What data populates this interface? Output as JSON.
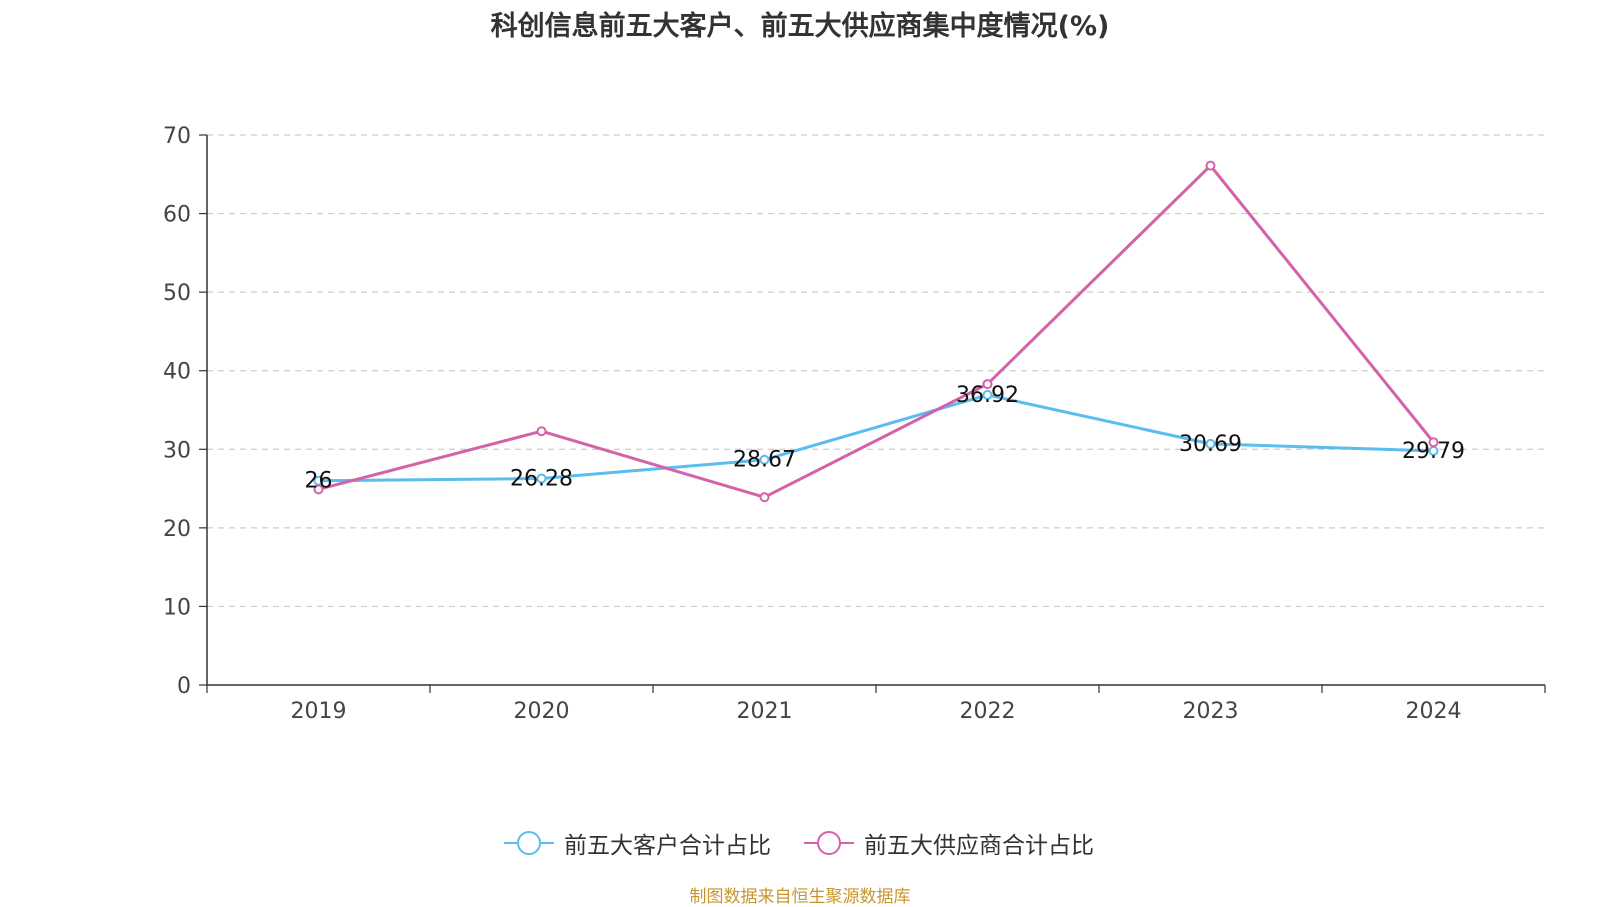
{
  "chart_data": {
    "type": "line",
    "title": "科创信息前五大客户、前五大供应商集中度情况(%)",
    "categories": [
      "2019",
      "2020",
      "2021",
      "2022",
      "2023",
      "2024"
    ],
    "ylim": [
      0,
      70
    ],
    "yticks": [
      0,
      10,
      20,
      30,
      40,
      50,
      60,
      70
    ],
    "grid": true,
    "legend_position": "bottom",
    "series": [
      {
        "name": "前五大客户合计占比",
        "color": "#5bbcf0",
        "values": [
          26,
          26.28,
          28.67,
          36.92,
          30.69,
          29.79
        ],
        "labels": [
          "26",
          "26.28",
          "28.67",
          "36.92",
          "30.69",
          "29.79"
        ]
      },
      {
        "name": "前五大供应商合计占比",
        "color": "#d462a8",
        "values": [
          24.9,
          32.3,
          23.9,
          38.3,
          66.1,
          30.9
        ]
      }
    ]
  },
  "source": "制图数据来自恒生聚源数据库"
}
